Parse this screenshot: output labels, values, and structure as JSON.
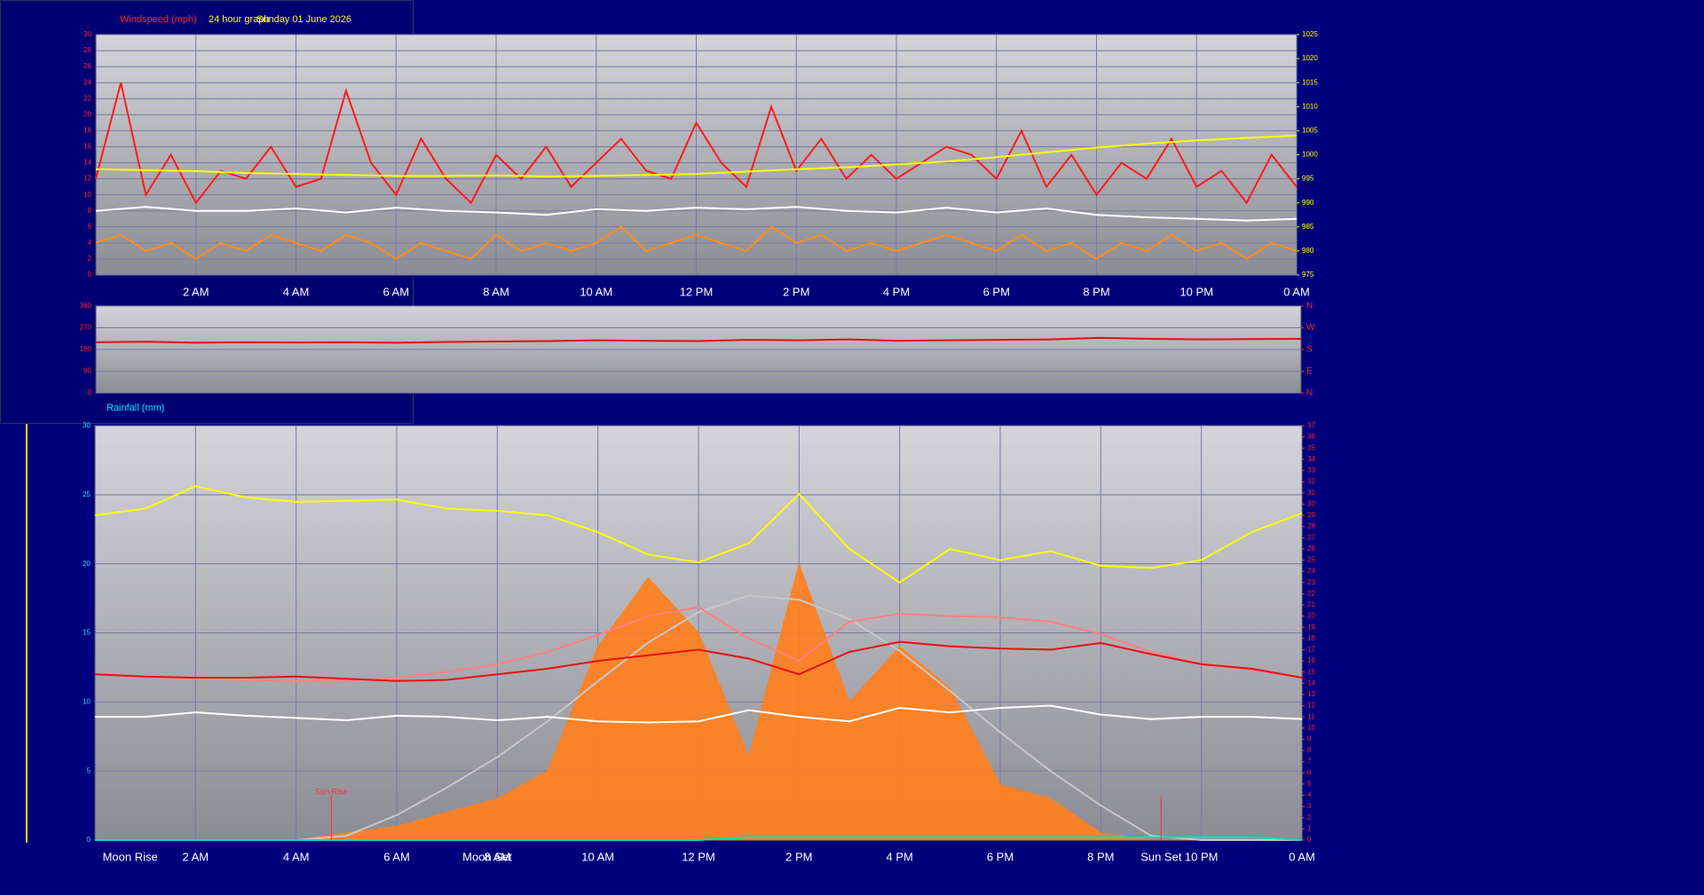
{
  "chart_data": [
    {
      "type": "line",
      "title": "24 hour graph",
      "subtitle": "Sunday 01 June 2026",
      "ylabel": "Windspeed (mph)",
      "xlim": [
        0,
        24
      ],
      "xticks": [
        {
          "value": 2,
          "label": "2 AM"
        },
        {
          "value": 4,
          "label": "4 AM"
        },
        {
          "value": 6,
          "label": "6 AM"
        },
        {
          "value": 8,
          "label": "8 AM"
        },
        {
          "value": 10,
          "label": "10 AM"
        },
        {
          "value": 12,
          "label": "12 PM"
        },
        {
          "value": 14,
          "label": "2 PM"
        },
        {
          "value": 16,
          "label": "4 PM"
        },
        {
          "value": 18,
          "label": "6 PM"
        },
        {
          "value": 20,
          "label": "8 PM"
        },
        {
          "value": 22,
          "label": "10 PM"
        },
        {
          "value": 24,
          "label": "0 AM"
        }
      ],
      "ylim": [
        0,
        30
      ],
      "yticks": [
        0,
        2,
        4,
        6,
        8,
        10,
        12,
        14,
        16,
        18,
        20,
        22,
        24,
        26,
        28,
        30
      ],
      "y2lim": [
        975,
        1025
      ],
      "y2ticks": [
        975,
        980,
        985,
        990,
        995,
        1000,
        1005,
        1010,
        1015,
        1020,
        1025
      ],
      "ytick_color": "#ff2020",
      "y2tick_color": "#ffff00",
      "grid": true,
      "series": [
        {
          "color": "#ff1a1a",
          "x": [
            0,
            0.5,
            1,
            1.5,
            2,
            2.5,
            3,
            3.5,
            4,
            4.5,
            5,
            5.5,
            6,
            6.5,
            7,
            7.5,
            8,
            8.5,
            9,
            9.5,
            10,
            10.5,
            11,
            11.5,
            12,
            12.5,
            13,
            13.5,
            14,
            14.5,
            15,
            15.5,
            16,
            16.5,
            17,
            17.5,
            18,
            18.5,
            19,
            19.5,
            20,
            20.5,
            21,
            21.5,
            22,
            22.5,
            23,
            23.5,
            24
          ],
          "values": [
            12,
            24,
            10,
            15,
            9,
            13,
            12,
            16,
            11,
            12,
            23,
            14,
            10,
            17,
            12,
            9,
            15,
            12,
            16,
            11,
            14,
            17,
            13,
            12,
            19,
            14,
            11,
            21,
            13,
            17,
            12,
            15,
            12,
            14,
            16,
            15,
            12,
            18,
            11,
            15,
            10,
            14,
            12,
            17,
            11,
            13,
            9,
            15,
            11
          ]
        },
        {
          "color": "#ff8c1a",
          "x": [
            0,
            0.5,
            1,
            1.5,
            2,
            2.5,
            3,
            3.5,
            4,
            4.5,
            5,
            5.5,
            6,
            6.5,
            7,
            7.5,
            8,
            8.5,
            9,
            9.5,
            10,
            10.5,
            11,
            11.5,
            12,
            12.5,
            13,
            13.5,
            14,
            14.5,
            15,
            15.5,
            16,
            16.5,
            17,
            17.5,
            18,
            18.5,
            19,
            19.5,
            20,
            20.5,
            21,
            21.5,
            22,
            22.5,
            23,
            23.5,
            24
          ],
          "values": [
            4,
            5,
            3,
            4,
            2,
            4,
            3,
            5,
            4,
            3,
            5,
            4,
            2,
            4,
            3,
            2,
            5,
            3,
            4,
            3,
            4,
            6,
            3,
            4,
            5,
            4,
            3,
            6,
            4,
            5,
            3,
            4,
            3,
            4,
            5,
            4,
            3,
            5,
            3,
            4,
            2,
            4,
            3,
            5,
            3,
            4,
            2,
            4,
            3
          ]
        },
        {
          "color": "#ffffff",
          "x": [
            0,
            1,
            2,
            3,
            4,
            5,
            6,
            7,
            8,
            9,
            10,
            11,
            12,
            13,
            14,
            15,
            16,
            17,
            18,
            19,
            20,
            21,
            22,
            23,
            24
          ],
          "values": [
            8,
            8.5,
            8,
            8,
            8.3,
            7.8,
            8.4,
            8,
            7.8,
            7.5,
            8.2,
            8,
            8.4,
            8.2,
            8.5,
            8,
            7.8,
            8.4,
            7.8,
            8.3,
            7.5,
            7.2,
            7,
            6.8,
            7
          ]
        },
        {
          "color": "#ffff00",
          "axis": "y2",
          "x": [
            0,
            1,
            2,
            3,
            4,
            5,
            6,
            7,
            8,
            9,
            10,
            11,
            12,
            13,
            14,
            15,
            16,
            17,
            18,
            19,
            20,
            21,
            22,
            23,
            24
          ],
          "values": [
            997,
            996.8,
            996.6,
            996.2,
            996,
            995.8,
            995.6,
            995.6,
            995.7,
            995.5,
            995.6,
            995.8,
            996,
            996.5,
            997,
            997.4,
            998,
            998.6,
            999.5,
            1000.5,
            1001.5,
            1002.3,
            1003,
            1003.5,
            1004
          ]
        }
      ]
    },
    {
      "type": "line",
      "xlim": [
        0,
        24
      ],
      "ylim": [
        0,
        360
      ],
      "yticks": [
        0,
        90,
        180,
        270,
        360
      ],
      "y2lim": [
        0,
        360
      ],
      "y2ticks": [
        {
          "value": 0,
          "label": "N"
        },
        {
          "value": 90,
          "label": "E"
        },
        {
          "value": 180,
          "label": "S"
        },
        {
          "value": 270,
          "label": "W"
        },
        {
          "value": 360,
          "label": "N"
        }
      ],
      "ytick_color": "#ff2020",
      "y2tick_color": "#ff2020",
      "grid": true,
      "series": [
        {
          "color": "#e01010",
          "x": [
            0,
            1,
            2,
            3,
            4,
            5,
            6,
            7,
            8,
            9,
            10,
            11,
            12,
            13,
            14,
            15,
            16,
            17,
            18,
            19,
            20,
            21,
            22,
            23,
            24
          ],
          "values": [
            210,
            212,
            208,
            210,
            209,
            210,
            208,
            211,
            213,
            215,
            218,
            216,
            215,
            220,
            218,
            222,
            216,
            218,
            220,
            222,
            228,
            224,
            222,
            223,
            224
          ]
        }
      ]
    },
    {
      "type": "line",
      "ylabel": "Rainfall (mm)",
      "xlim": [
        0,
        24
      ],
      "xticks": [
        {
          "value": 2,
          "label": "2 AM"
        },
        {
          "value": 4,
          "label": "4 AM"
        },
        {
          "value": 6,
          "label": "6 AM"
        },
        {
          "value": 8,
          "label": "8 AM"
        },
        {
          "value": 10,
          "label": "10 AM"
        },
        {
          "value": 12,
          "label": "12 PM"
        },
        {
          "value": 14,
          "label": "2 PM"
        },
        {
          "value": 16,
          "label": "4 PM"
        },
        {
          "value": 18,
          "label": "6 PM"
        },
        {
          "value": 20,
          "label": "8 PM"
        },
        {
          "value": 22,
          "label": "10 PM"
        },
        {
          "value": 24,
          "label": "0 AM"
        }
      ],
      "ylim": [
        0,
        30
      ],
      "yticks": [
        0,
        5,
        10,
        15,
        20,
        25,
        30
      ],
      "y2lim": [
        0,
        37
      ],
      "y2ticks": [
        0,
        1,
        2,
        3,
        4,
        5,
        6,
        7,
        8,
        9,
        10,
        11,
        12,
        13,
        14,
        15,
        16,
        17,
        18,
        19,
        20,
        21,
        22,
        23,
        24,
        25,
        26,
        27,
        28,
        29,
        30,
        31,
        32,
        33,
        34,
        35,
        36,
        37
      ],
      "ytick_color": "#00e5ff",
      "y2tick_color": "#ff2020",
      "grid": true,
      "series": [
        {
          "color": "#ff8020",
          "area": true,
          "x": [
            0,
            1,
            2,
            3,
            4,
            5,
            6,
            7,
            8,
            9,
            10,
            11,
            12,
            13,
            14,
            15,
            16,
            17,
            18,
            19,
            20,
            21,
            22,
            23,
            24
          ],
          "values": [
            0,
            0,
            0,
            0,
            0,
            0.5,
            1,
            2,
            3,
            5,
            14,
            19,
            15,
            6,
            20,
            10,
            14,
            11,
            4,
            3,
            0.5,
            0,
            0,
            0,
            0
          ]
        },
        {
          "color": "#c8c8c8",
          "x": [
            0,
            1,
            2,
            3,
            4,
            5,
            6,
            7,
            8,
            9,
            10,
            11,
            12,
            13,
            14,
            15,
            16,
            17,
            18,
            19,
            20,
            21,
            22,
            23,
            24
          ],
          "values": [
            0,
            0,
            0,
            0,
            0,
            0.3,
            1.8,
            3.8,
            6,
            8.6,
            11.5,
            14.3,
            16.5,
            17.7,
            17.4,
            16,
            13.7,
            10.8,
            7.8,
            5,
            2.5,
            0.3,
            0,
            0,
            0
          ]
        },
        {
          "color": "#00e0c0",
          "x": [
            0,
            1,
            2,
            3,
            4,
            5,
            6,
            7,
            8,
            9,
            10,
            11,
            12,
            13,
            14,
            15,
            16,
            17,
            18,
            19,
            20,
            21,
            22,
            23,
            24
          ],
          "values": [
            0,
            0,
            0,
            0,
            0,
            0,
            0,
            0,
            0,
            0,
            0,
            0,
            0,
            0.2,
            0.2,
            0.2,
            0.2,
            0.2,
            0.2,
            0.2,
            0.2,
            0.2,
            0.2,
            0.2,
            0
          ]
        },
        {
          "color": "#ff8080",
          "axis": "y2",
          "x": [
            0,
            1,
            2,
            3,
            4,
            5,
            6,
            7,
            8,
            9,
            10,
            11,
            12,
            13,
            14,
            15,
            16,
            17,
            18,
            19,
            20,
            21,
            22,
            23,
            24
          ],
          "values": [
            14.8,
            14.6,
            14.4,
            14.3,
            14.2,
            14.2,
            14.5,
            15,
            15.7,
            16.8,
            18.3,
            20,
            20.8,
            18,
            16,
            19.5,
            20.2,
            20,
            19.9,
            19.5,
            18.4,
            16.8,
            15.7,
            15.2,
            14.5
          ]
        },
        {
          "color": "#e81010",
          "axis": "y2",
          "x": [
            0,
            1,
            2,
            3,
            4,
            5,
            6,
            7,
            8,
            9,
            10,
            11,
            12,
            13,
            14,
            15,
            16,
            17,
            18,
            19,
            20,
            21,
            22,
            23,
            24
          ],
          "values": [
            14.8,
            14.6,
            14.5,
            14.5,
            14.6,
            14.4,
            14.2,
            14.3,
            14.8,
            15.3,
            16,
            16.5,
            17,
            16.2,
            14.8,
            16.8,
            17.7,
            17.3,
            17.1,
            17,
            17.6,
            16.6,
            15.7,
            15.3,
            14.5
          ]
        },
        {
          "color": "#ffffff",
          "axis": "y2",
          "x": [
            0,
            1,
            2,
            3,
            4,
            5,
            6,
            7,
            8,
            9,
            10,
            11,
            12,
            13,
            14,
            15,
            16,
            17,
            18,
            19,
            20,
            21,
            22,
            23,
            24
          ],
          "values": [
            11,
            11,
            11.4,
            11.1,
            10.9,
            10.7,
            11.1,
            11,
            10.7,
            11,
            10.6,
            10.5,
            10.6,
            11.6,
            11,
            10.6,
            11.8,
            11.4,
            11.8,
            12,
            11.2,
            10.8,
            11,
            11,
            10.8
          ]
        },
        {
          "color": "#ffff00",
          "axis": "y2",
          "x": [
            0,
            1,
            2,
            3,
            4,
            5,
            6,
            7,
            8,
            9,
            10,
            11,
            12,
            13,
            14,
            15,
            16,
            17,
            18,
            19,
            20,
            21,
            22,
            23,
            24
          ],
          "values": [
            29,
            29.6,
            31.6,
            30.6,
            30.2,
            30.3,
            30.4,
            29.6,
            29.4,
            29,
            27.5,
            25.5,
            24.8,
            26.5,
            30.9,
            26,
            23,
            26,
            25,
            25.8,
            24.5,
            24.3,
            25,
            27.5,
            29.2
          ]
        }
      ],
      "annotations": [
        {
          "text": "Moon Rise",
          "x": 0.7,
          "color": "#ffffff",
          "marker": false
        },
        {
          "text": "Sun Rise",
          "x": 4.7,
          "color": "#ff3030",
          "marker": true
        },
        {
          "text": "Moon Set",
          "x": 7.8,
          "color": "#ffffff",
          "marker": false
        },
        {
          "text": "Sun Set",
          "x": 21.2,
          "color": "#ffffff",
          "marker": true
        }
      ]
    }
  ]
}
